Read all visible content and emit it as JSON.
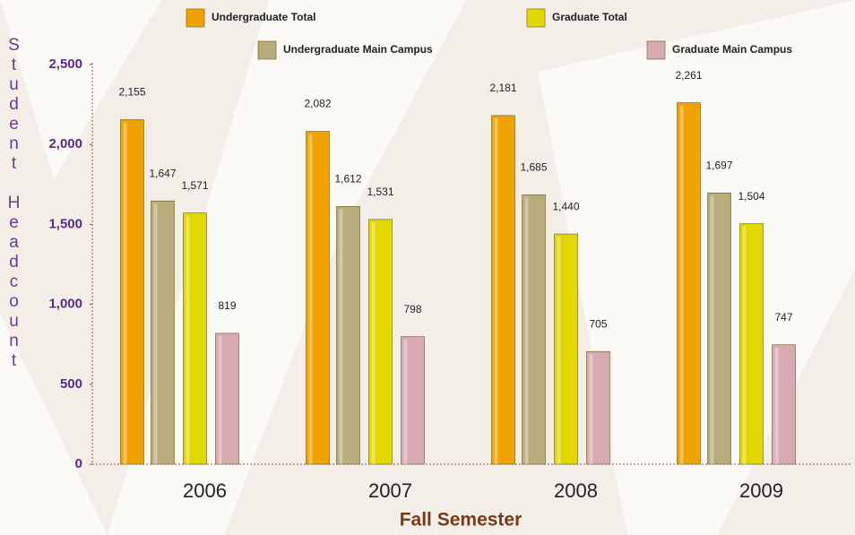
{
  "chart_data": {
    "type": "bar",
    "x_label": "Fall Semester",
    "y_label": "Student Headcount",
    "categories": [
      "2006",
      "2007",
      "2008",
      "2009"
    ],
    "series": [
      {
        "name": "Undergraduate Total",
        "color": "#f0a300",
        "values": [
          2155,
          2082,
          2181,
          2261
        ],
        "value_labels": [
          "2,155",
          "2,082",
          "2,181",
          "2,261"
        ]
      },
      {
        "name": "Undergraduate Main Campus",
        "color": "#b8ab7c",
        "values": [
          1647,
          1612,
          1685,
          1697
        ],
        "value_labels": [
          "1,647",
          "1,612",
          "1,685",
          "1,697"
        ]
      },
      {
        "name": "Graduate Total",
        "color": "#e2d800",
        "values": [
          1571,
          1531,
          1440,
          1504
        ],
        "value_labels": [
          "1,571",
          "1,531",
          "1,440",
          "1,504"
        ]
      },
      {
        "name": "Graduate Main Campus",
        "color": "#d6aab0",
        "values": [
          819,
          798,
          705,
          747
        ]
      }
    ],
    "ylim": [
      0,
      2500
    ],
    "yticks": [
      0,
      500,
      {
        "value": 1000,
        "label": "1,000"
      },
      {
        "value": 1500,
        "label": "1,500"
      },
      {
        "value": 2000,
        "label": "2,000"
      },
      {
        "value": 2500,
        "label": "2,500"
      }
    ]
  }
}
